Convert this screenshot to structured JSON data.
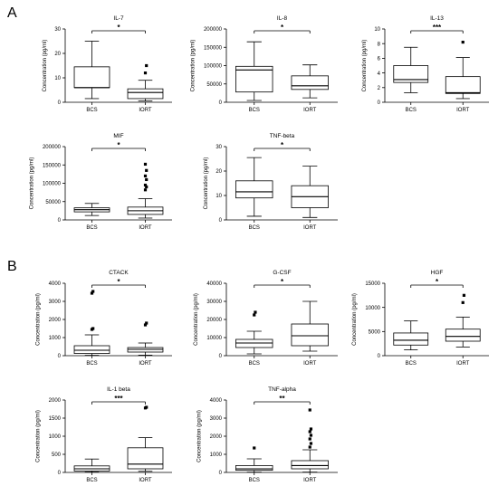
{
  "panels": [
    {
      "letter": "A"
    },
    {
      "letter": "B"
    }
  ],
  "chart_data": [
    {
      "type": "boxplot",
      "title": "IL-7",
      "ylabel": "Concentration (pg/ml)",
      "ylim": [
        0,
        30
      ],
      "yticks": [
        0,
        10,
        20,
        30
      ],
      "categories": [
        "BCS",
        "IORT"
      ],
      "significance": "*",
      "boxes": [
        {
          "whisker_low": 1.5,
          "q1": 6,
          "median": 6,
          "q3": 14.5,
          "whisker_high": 25,
          "outliers": []
        },
        {
          "whisker_low": 0.5,
          "q1": 1.5,
          "median": 4,
          "q3": 5.5,
          "whisker_high": 9,
          "outliers": [
            12,
            15
          ]
        }
      ]
    },
    {
      "type": "boxplot",
      "title": "IL-8",
      "ylabel": "Concentration (pg/ml)",
      "ylim": [
        0,
        200000
      ],
      "yticks": [
        0,
        50000,
        100000,
        150000,
        200000
      ],
      "categories": [
        "BCS",
        "IORT"
      ],
      "significance": "*",
      "boxes": [
        {
          "whisker_low": 5000,
          "q1": 28000,
          "median": 88000,
          "q3": 98000,
          "whisker_high": 165000,
          "outliers": []
        },
        {
          "whisker_low": 12000,
          "q1": 35000,
          "median": 45000,
          "q3": 72000,
          "whisker_high": 102000,
          "outliers": []
        }
      ]
    },
    {
      "type": "boxplot",
      "title": "IL-13",
      "ylabel": "Concentration (pg/ml)",
      "ylim": [
        0,
        10
      ],
      "yticks": [
        0,
        2,
        4,
        6,
        8,
        10
      ],
      "categories": [
        "BCS",
        "IORT"
      ],
      "significance": "***",
      "boxes": [
        {
          "whisker_low": 1.3,
          "q1": 2.7,
          "median": 3.1,
          "q3": 5.0,
          "whisker_high": 7.5,
          "outliers": []
        },
        {
          "whisker_low": 0.5,
          "q1": 1.2,
          "median": 1.3,
          "q3": 3.5,
          "whisker_high": 6.1,
          "outliers": [
            8.2
          ]
        }
      ]
    },
    {
      "type": "boxplot",
      "title": "MIF",
      "ylabel": "Concentration (pg/ml)",
      "ylim": [
        0,
        200000
      ],
      "yticks": [
        0,
        50000,
        100000,
        150000,
        200000
      ],
      "categories": [
        "BCS",
        "IORT"
      ],
      "significance": "*",
      "boxes": [
        {
          "whisker_low": 12000,
          "q1": 22000,
          "median": 28000,
          "q3": 33000,
          "whisker_high": 45000,
          "outliers": []
        },
        {
          "whisker_low": 5000,
          "q1": 15000,
          "median": 25000,
          "q3": 35000,
          "whisker_high": 58000,
          "outliers": [
            82000,
            90000,
            95000,
            110000,
            120000,
            135000,
            152000
          ]
        }
      ]
    },
    {
      "type": "boxplot",
      "title": "TNF-beta",
      "ylabel": "Concentration (pg/ml)",
      "ylim": [
        0,
        30
      ],
      "yticks": [
        0,
        10,
        20,
        30
      ],
      "categories": [
        "BCS",
        "IORT"
      ],
      "significance": "*",
      "boxes": [
        {
          "whisker_low": 1.5,
          "q1": 9,
          "median": 11.5,
          "q3": 16,
          "whisker_high": 25.5,
          "outliers": []
        },
        {
          "whisker_low": 1,
          "q1": 5,
          "median": 9.5,
          "q3": 14,
          "whisker_high": 22,
          "outliers": []
        }
      ]
    },
    {
      "type": "boxplot",
      "title": "CTACK",
      "ylabel": "Concentration (pg/ml)",
      "ylim": [
        0,
        4000
      ],
      "yticks": [
        0,
        1000,
        2000,
        3000,
        4000
      ],
      "categories": [
        "BCS",
        "IORT"
      ],
      "significance": "*",
      "boxes": [
        {
          "whisker_low": 20,
          "q1": 120,
          "median": 300,
          "q3": 550,
          "whisker_high": 1150,
          "outliers": [
            1450,
            1500,
            3450,
            3550
          ]
        },
        {
          "whisker_low": 30,
          "q1": 200,
          "median": 350,
          "q3": 450,
          "whisker_high": 700,
          "outliers": [
            1700,
            1800
          ]
        }
      ]
    },
    {
      "type": "boxplot",
      "title": "G-CSF",
      "ylabel": "Concentration (pg/ml)",
      "ylim": [
        0,
        40000
      ],
      "yticks": [
        0,
        10000,
        20000,
        30000,
        40000
      ],
      "categories": [
        "BCS",
        "IORT"
      ],
      "significance": "*",
      "boxes": [
        {
          "whisker_low": 1000,
          "q1": 4500,
          "median": 7000,
          "q3": 9000,
          "whisker_high": 13500,
          "outliers": [
            22500,
            24000
          ]
        },
        {
          "whisker_low": 2500,
          "q1": 5500,
          "median": 11000,
          "q3": 17500,
          "whisker_high": 30000,
          "outliers": []
        }
      ]
    },
    {
      "type": "boxplot",
      "title": "HGF",
      "ylabel": "Concentration (pg/ml)",
      "ylim": [
        0,
        15000
      ],
      "yticks": [
        0,
        5000,
        10000,
        15000
      ],
      "categories": [
        "BCS",
        "IORT"
      ],
      "significance": "*",
      "boxes": [
        {
          "whisker_low": 1200,
          "q1": 2200,
          "median": 3200,
          "q3": 4700,
          "whisker_high": 7200,
          "outliers": []
        },
        {
          "whisker_low": 1800,
          "q1": 3000,
          "median": 4000,
          "q3": 5500,
          "whisker_high": 8000,
          "outliers": [
            11000,
            12500
          ]
        }
      ]
    },
    {
      "type": "boxplot",
      "title": "IL-1 beta",
      "ylabel": "Concentration (pg/ml)",
      "ylim": [
        0,
        2000
      ],
      "yticks": [
        0,
        500,
        1000,
        1500,
        2000
      ],
      "categories": [
        "BCS",
        "IORT"
      ],
      "significance": "***",
      "boxes": [
        {
          "whisker_low": 10,
          "q1": 40,
          "median": 100,
          "q3": 180,
          "whisker_high": 370,
          "outliers": []
        },
        {
          "whisker_low": 30,
          "q1": 100,
          "median": 230,
          "q3": 680,
          "whisker_high": 960,
          "outliers": [
            1780,
            1800
          ]
        }
      ]
    },
    {
      "type": "boxplot",
      "title": "TNF-alpha",
      "ylabel": "Concentration (pg/ml)",
      "ylim": [
        0,
        4000
      ],
      "yticks": [
        0,
        1000,
        2000,
        3000,
        4000
      ],
      "categories": [
        "BCS",
        "IORT"
      ],
      "significance": "**",
      "boxes": [
        {
          "whisker_low": 20,
          "q1": 120,
          "median": 200,
          "q3": 380,
          "whisker_high": 750,
          "outliers": [
            1350
          ]
        },
        {
          "whisker_low": 20,
          "q1": 200,
          "median": 380,
          "q3": 650,
          "whisker_high": 1250,
          "outliers": [
            1400,
            1600,
            1850,
            2050,
            2250,
            2400,
            3450
          ]
        }
      ]
    }
  ]
}
